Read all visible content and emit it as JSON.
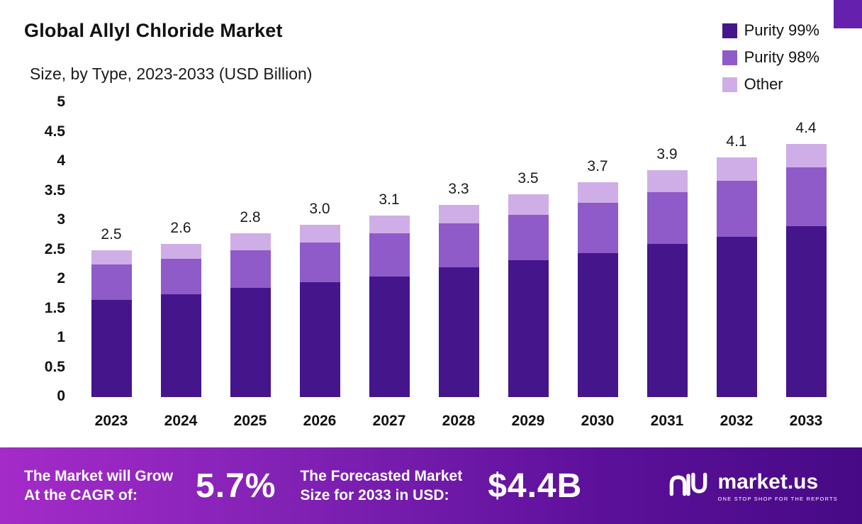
{
  "title": "Global Allyl Chloride Market",
  "subtitle": "Size, by Type, 2023-2033 (USD Billion)",
  "legend": [
    {
      "label": "Purity 99%",
      "color": "#45158c"
    },
    {
      "label": "Purity 98%",
      "color": "#8e5bc8"
    },
    {
      "label": "Other",
      "color": "#cfaee8"
    }
  ],
  "chart_data": {
    "type": "bar",
    "stacked": true,
    "title": "Global Allyl Chloride Market Size, by Type, 2023-2033 (USD Billion)",
    "categories": [
      "2023",
      "2024",
      "2025",
      "2026",
      "2027",
      "2028",
      "2029",
      "2030",
      "2031",
      "2032",
      "2033"
    ],
    "series": [
      {
        "name": "Purity 99%",
        "color": "#45158c",
        "values": [
          1.65,
          1.75,
          1.85,
          1.95,
          2.05,
          2.2,
          2.32,
          2.45,
          2.6,
          2.72,
          2.9
        ]
      },
      {
        "name": "Purity 98%",
        "color": "#8e5bc8",
        "values": [
          0.6,
          0.6,
          0.65,
          0.68,
          0.73,
          0.75,
          0.78,
          0.85,
          0.88,
          0.95,
          1.0
        ]
      },
      {
        "name": "Other",
        "color": "#cfaee8",
        "values": [
          0.25,
          0.25,
          0.28,
          0.3,
          0.3,
          0.32,
          0.35,
          0.35,
          0.38,
          0.4,
          0.4
        ]
      }
    ],
    "totals_labels": [
      "2.5",
      "2.6",
      "2.8",
      "3.0",
      "3.1",
      "3.3",
      "3.5",
      "3.7",
      "3.9",
      "4.1",
      "4.4"
    ],
    "ylim": [
      0,
      5
    ],
    "yticks": [
      "5",
      "4.5",
      "4",
      "3.5",
      "3",
      "2.5",
      "2",
      "1.5",
      "1",
      "0.5",
      "0"
    ],
    "xlabel": "",
    "ylabel": "",
    "grid": false,
    "legend_position": "top-right"
  },
  "banner": {
    "cagr_label_line1": "The Market will Grow",
    "cagr_label_line2": "At the CAGR of:",
    "cagr_value": "5.7%",
    "forecast_label_line1": "The Forecasted Market",
    "forecast_label_line2": "Size for 2033 in USD:",
    "forecast_value": "$4.4B",
    "brand": "market.us",
    "brand_tagline": "ONE STOP SHOP FOR THE REPORTS"
  }
}
